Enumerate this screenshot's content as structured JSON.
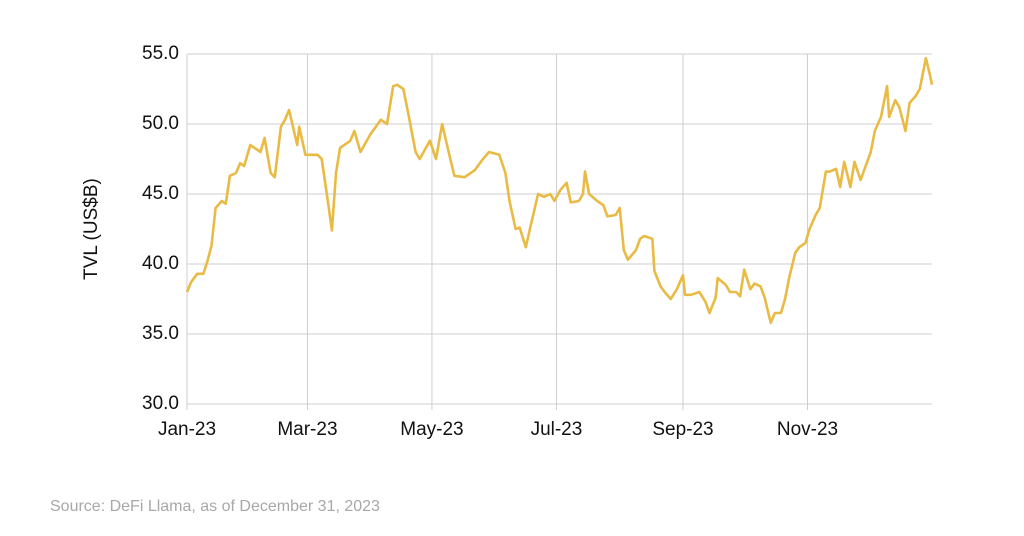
{
  "chart_data": {
    "type": "line",
    "ylabel": "TVL (US$B)",
    "source": "Source: DeFi Llama, as of December 31, 2023",
    "color": "#e9bb45",
    "grid": true,
    "xlim": [
      0,
      365
    ],
    "xticks": [
      {
        "value": 0,
        "label": "Jan-23"
      },
      {
        "value": 59,
        "label": "Mar-23"
      },
      {
        "value": 120,
        "label": "May-23"
      },
      {
        "value": 181,
        "label": "Jul-23"
      },
      {
        "value": 243,
        "label": "Sep-23"
      },
      {
        "value": 304,
        "label": "Nov-23"
      }
    ],
    "ylim": [
      30,
      55
    ],
    "yticks": [
      {
        "value": 30,
        "label": "30.0"
      },
      {
        "value": 35,
        "label": "35.0"
      },
      {
        "value": 40,
        "label": "40.0"
      },
      {
        "value": 45,
        "label": "45.0"
      },
      {
        "value": 50,
        "label": "50.0"
      },
      {
        "value": 55,
        "label": "55.0"
      }
    ],
    "x": [
      0,
      2,
      5,
      8,
      10,
      12,
      14,
      17,
      19,
      21,
      24,
      26,
      28,
      31,
      33,
      36,
      38,
      41,
      43,
      46,
      48,
      50,
      54,
      55,
      58,
      60,
      64,
      66,
      69,
      71,
      73,
      75,
      80,
      82,
      85,
      90,
      95,
      98,
      101,
      103,
      106,
      109,
      112,
      114,
      119,
      122,
      125,
      129,
      131,
      136,
      141,
      145,
      148,
      153,
      156,
      158,
      161,
      163,
      166,
      168,
      172,
      175,
      178,
      180,
      183,
      186,
      188,
      192,
      194,
      195,
      197,
      201,
      204,
      206,
      210,
      212,
      214,
      216,
      220,
      222,
      224,
      228,
      229,
      232,
      234,
      237,
      240,
      243,
      244,
      247,
      251,
      254,
      256,
      259,
      260,
      264,
      266,
      269,
      271,
      273,
      276,
      278,
      281,
      283,
      286,
      288,
      291,
      293,
      295,
      298,
      300,
      303,
      305,
      308,
      310,
      313,
      315,
      318,
      320,
      322,
      325,
      327,
      330,
      332,
      335,
      337,
      340,
      343,
      344,
      347,
      349,
      352,
      354,
      357,
      359,
      362,
      364,
      365
    ],
    "values": [
      38.0,
      38.7,
      39.3,
      39.3,
      40.2,
      41.3,
      44.0,
      44.5,
      44.3,
      46.3,
      46.5,
      47.2,
      47.0,
      48.5,
      48.3,
      48.0,
      49.0,
      46.5,
      46.2,
      49.8,
      50.3,
      51.0,
      48.5,
      49.8,
      47.8,
      47.8,
      47.8,
      47.5,
      44.5,
      42.4,
      46.5,
      48.3,
      48.8,
      49.5,
      48.0,
      49.3,
      50.3,
      50.0,
      52.7,
      52.8,
      52.5,
      50.3,
      48.0,
      47.5,
      48.8,
      47.5,
      50.0,
      47.5,
      46.3,
      46.2,
      46.7,
      47.5,
      48.0,
      47.8,
      46.5,
      44.5,
      42.5,
      42.6,
      41.2,
      42.5,
      45.0,
      44.8,
      45.0,
      44.5,
      45.3,
      45.8,
      44.4,
      44.5,
      45.0,
      46.6,
      45.0,
      44.5,
      44.2,
      43.4,
      43.5,
      44.0,
      41.0,
      40.3,
      41.0,
      41.8,
      42.0,
      41.8,
      39.5,
      38.4,
      38.0,
      37.5,
      38.2,
      39.2,
      37.8,
      37.8,
      38.0,
      37.3,
      36.5,
      37.6,
      39.0,
      38.5,
      38.0,
      38.0,
      37.7,
      39.6,
      38.2,
      38.6,
      38.4,
      37.6,
      35.8,
      36.5,
      36.5,
      37.5,
      39.0,
      40.8,
      41.2,
      41.5,
      42.5,
      43.5,
      44.0,
      46.6,
      46.6,
      46.8,
      45.5,
      47.3,
      45.5,
      47.3,
      46.0,
      46.8,
      48.0,
      49.5,
      50.5,
      52.7,
      50.5,
      51.7,
      51.2,
      49.5,
      51.5,
      52.0,
      52.5,
      54.7,
      53.5,
      52.8
    ]
  }
}
